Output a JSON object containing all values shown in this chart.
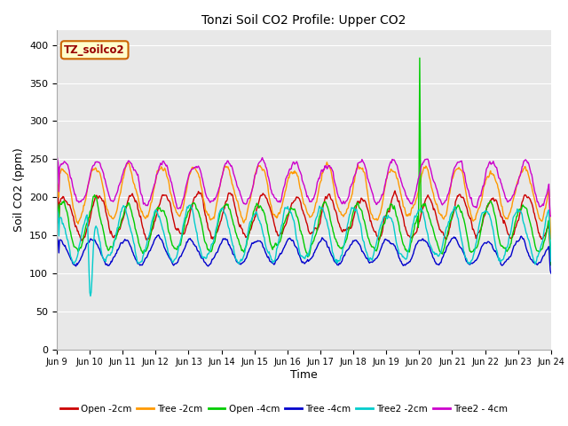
{
  "title": "Tonzi Soil CO2 Profile: Upper CO2",
  "xlabel": "Time",
  "ylabel": "Soil CO2 (ppm)",
  "ylim": [
    0,
    420
  ],
  "yticks": [
    0,
    50,
    100,
    150,
    200,
    250,
    300,
    350,
    400
  ],
  "x_tick_labels": [
    "Jun 9",
    "Jun 10",
    "Jun 11",
    "Jun 12",
    "Jun 13",
    "Jun 14",
    "Jun 15",
    "Jun 16",
    "Jun 17",
    "Jun 18",
    "Jun 19",
    "Jun 20",
    "Jun 21",
    "Jun 22",
    "Jun 23",
    "Jun 24"
  ],
  "figure_bg": "#ffffff",
  "plot_bg": "#e8e8e8",
  "grid_color": "#ffffff",
  "legend_label": "TZ_soilco2",
  "legend_bg": "#ffffcc",
  "legend_border": "#cc6600",
  "legend_text_color": "#990000",
  "series": [
    {
      "label": "Open -2cm",
      "color": "#cc0000"
    },
    {
      "label": "Tree -2cm",
      "color": "#ff9900"
    },
    {
      "label": "Open -4cm",
      "color": "#00cc00"
    },
    {
      "label": "Tree -4cm",
      "color": "#0000cc"
    },
    {
      "label": "Tree2 -2cm",
      "color": "#00cccc"
    },
    {
      "label": "Tree2 - 4cm",
      "color": "#cc00cc"
    }
  ],
  "lw": 1.0,
  "seed": 42,
  "n_points": 720,
  "spike_idx": 528,
  "spike_val": 383
}
